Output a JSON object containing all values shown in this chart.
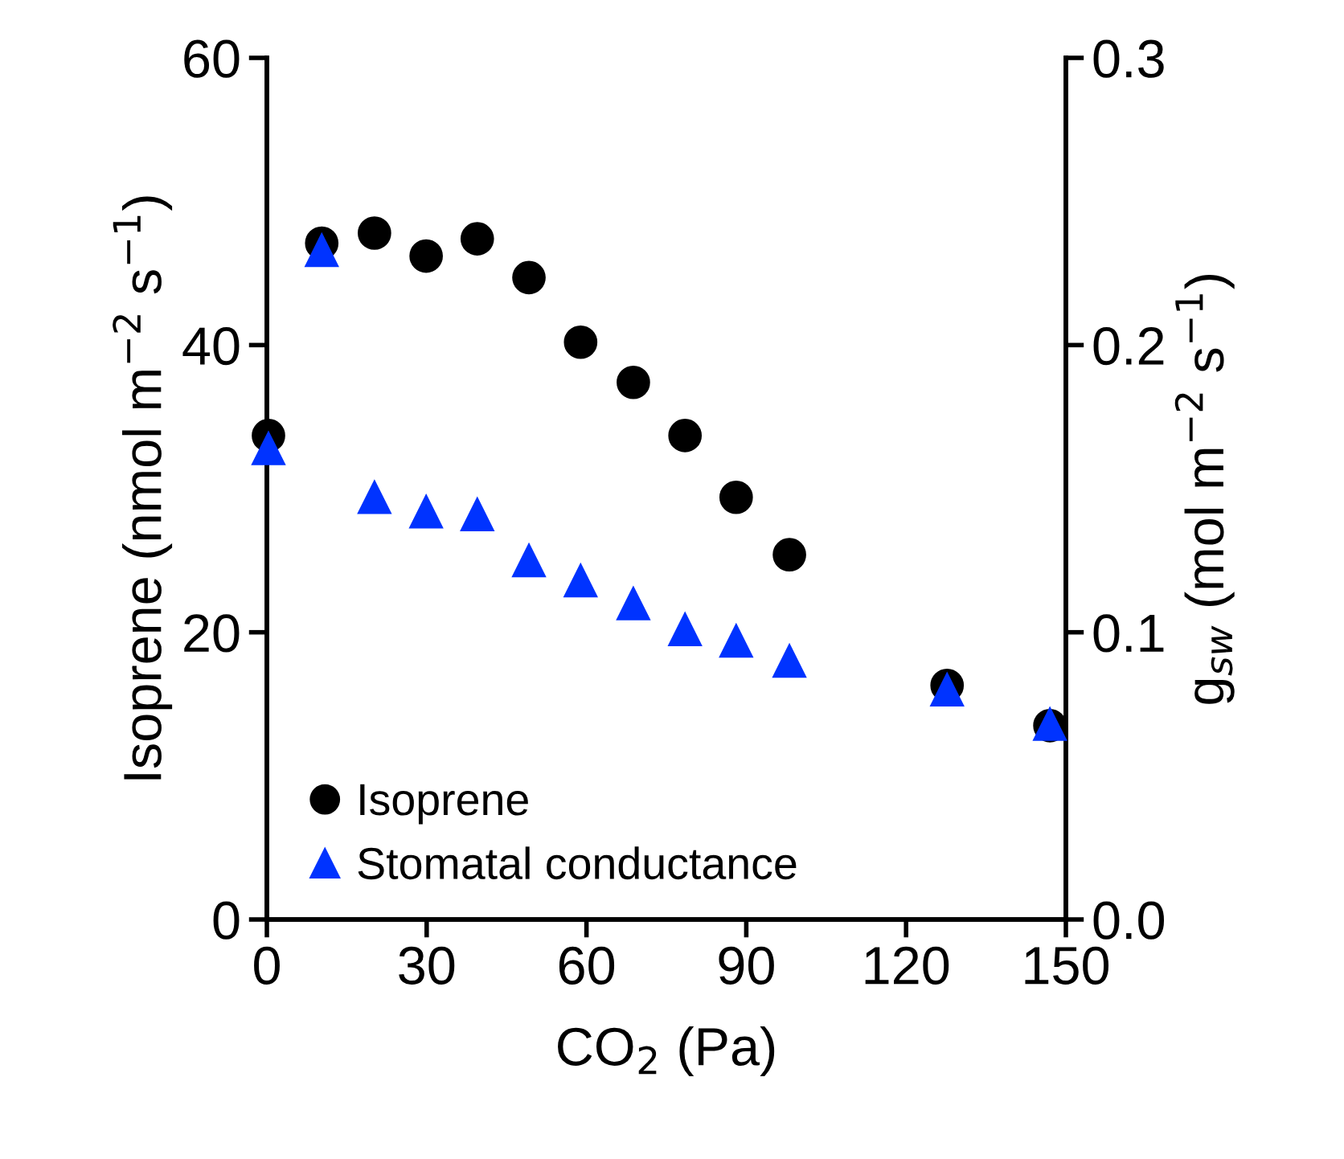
{
  "chart_data": {
    "type": "scatter",
    "xlabel": "CO$_{2}$ (Pa)",
    "ylabel": "Isoprene (nmol m$^{−2}$ s$^{−1}$)",
    "y2label": "g$_{sw}$ (mol m$^{−2}$ s$^{−1}$)",
    "x": [
      0.3,
      10.3,
      20.2,
      29.9,
      39.5,
      49.2,
      58.9,
      68.8,
      78.5,
      88.1,
      98.1,
      127.7,
      147.0
    ],
    "series": [
      {
        "name": "Isoprene",
        "color": "#000000",
        "marker": "circle",
        "values": [
          33.7,
          47.1,
          47.8,
          46.2,
          47.4,
          44.7,
          40.2,
          37.4,
          33.7,
          29.4,
          25.4,
          16.3,
          13.5
        ]
      },
      {
        "name": "Stomatal conductance",
        "color": "#0033ff",
        "marker": "triangle",
        "axis": "y2",
        "values": [
          0.164,
          0.233,
          0.147,
          0.142,
          0.141,
          0.125,
          0.118,
          0.11,
          0.101,
          0.097,
          0.09,
          0.08,
          0.068
        ]
      }
    ],
    "xlim": [
      0,
      150
    ],
    "xticks": [
      0,
      30,
      60,
      90,
      120,
      150
    ],
    "ylim": [
      0,
      60
    ],
    "yticks": [
      0,
      20,
      40,
      60
    ],
    "y2lim": [
      0,
      0.3
    ],
    "y2ticks": [
      {
        "value": 0,
        "label": "0.0"
      },
      {
        "value": 0.1,
        "label": "0.1"
      },
      {
        "value": 0.2,
        "label": "0.2"
      },
      {
        "value": 0.3,
        "label": "0.3"
      }
    ],
    "grid": false,
    "legend": "bottom left"
  }
}
